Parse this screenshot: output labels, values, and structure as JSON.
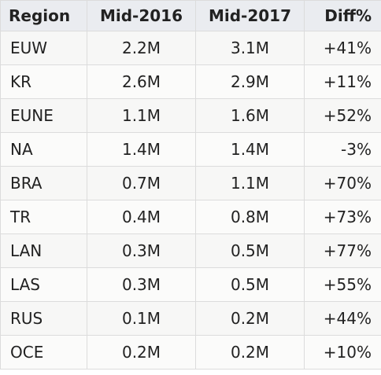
{
  "table": {
    "headers": [
      "Region",
      "Mid-2016",
      "Mid-2017",
      "Diff%"
    ],
    "rows": [
      [
        "EUW",
        "2.2M",
        "3.1M",
        "+41%"
      ],
      [
        "KR",
        "2.6M",
        "2.9M",
        "+11%"
      ],
      [
        "EUNE",
        "1.1M",
        "1.6M",
        "+52%"
      ],
      [
        "NA",
        "1.4M",
        "1.4M",
        "-3%"
      ],
      [
        "BRA",
        "0.7M",
        "1.1M",
        "+70%"
      ],
      [
        "TR",
        "0.4M",
        "0.8M",
        "+73%"
      ],
      [
        "LAN",
        "0.3M",
        "0.5M",
        "+77%"
      ],
      [
        "LAS",
        "0.3M",
        "0.5M",
        "+55%"
      ],
      [
        "RUS",
        "0.1M",
        "0.2M",
        "+44%"
      ],
      [
        "OCE",
        "0.2M",
        "0.2M",
        "+10%"
      ]
    ]
  },
  "colors": {
    "header_bg": "#eaecf0",
    "row_bg": "#f7f7f6",
    "border": "#dcdcdc",
    "text": "#222222"
  }
}
